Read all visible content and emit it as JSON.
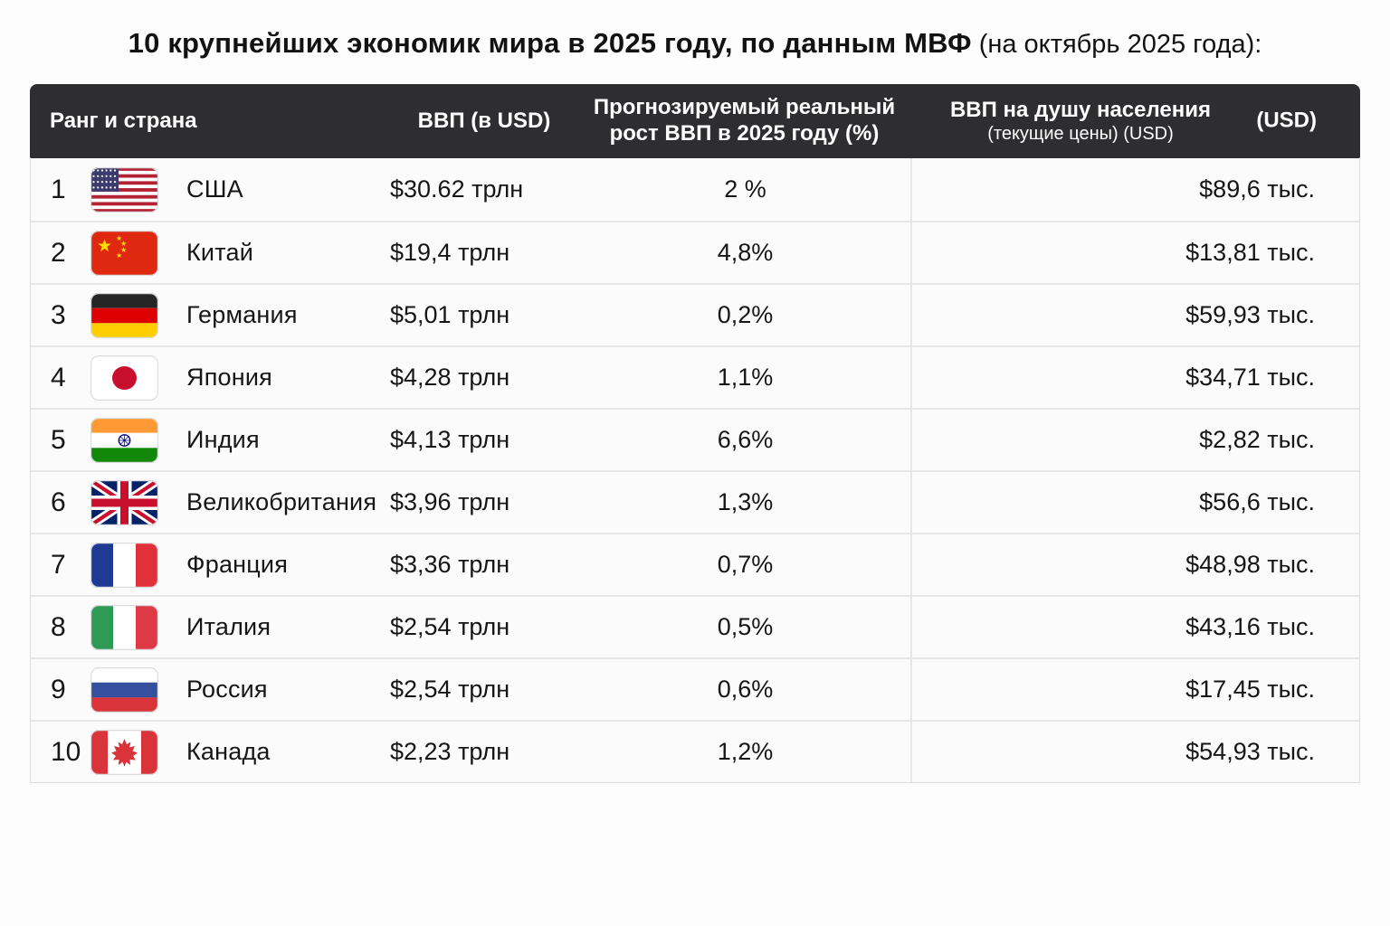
{
  "title": {
    "main": "10 крупнейших экономик мира в 2025 году, по данным МВФ",
    "suffix": " (на октябрь 2025 года):"
  },
  "table": {
    "headers": {
      "rank_country": "Ранг и страна",
      "gdp": "ВВП (в USD)",
      "growth_line1": "Прогнозируемый реальный",
      "growth_line2": "рост ВВП в 2025 году (%)",
      "per_capita_line1": "ВВП на душу населения",
      "per_capita_line1_right": "(USD)",
      "per_capita_line2": "(текущие цены) (USD)"
    },
    "rows": [
      {
        "rank": "1",
        "country": "США",
        "flag_icon": "usa-flag-icon",
        "gdp": "$30.62 трлн",
        "growth": "2 %",
        "per_capita": "$89,6 тыс."
      },
      {
        "rank": "2",
        "country": "Китай",
        "flag_icon": "china-flag-icon",
        "gdp": "$19,4 трлн",
        "growth": "4,8%",
        "per_capita": "$13,81 тыс."
      },
      {
        "rank": "3",
        "country": "Германия",
        "flag_icon": "germany-flag-icon",
        "gdp": "$5,01 трлн",
        "growth": "0,2%",
        "per_capita": "$59,93 тыс."
      },
      {
        "rank": "4",
        "country": "Япония",
        "flag_icon": "japan-flag-icon",
        "gdp": "$4,28 трлн",
        "growth": "1,1%",
        "per_capita": "$34,71 тыс."
      },
      {
        "rank": "5",
        "country": "Индия",
        "flag_icon": "india-flag-icon",
        "gdp": "$4,13 трлн",
        "growth": "6,6%",
        "per_capita": "$2,82 тыс."
      },
      {
        "rank": "6",
        "country": "Великобритания",
        "flag_icon": "uk-flag-icon",
        "gdp": "$3,96 трлн",
        "growth": "1,3%",
        "per_capita": "$56,6 тыс."
      },
      {
        "rank": "7",
        "country": "Франция",
        "flag_icon": "france-flag-icon",
        "gdp": "$3,36 трлн",
        "growth": "0,7%",
        "per_capita": "$48,98 тыс."
      },
      {
        "rank": "8",
        "country": "Италия",
        "flag_icon": "italy-flag-icon",
        "gdp": "$2,54 трлн",
        "growth": "0,5%",
        "per_capita": "$43,16 тыс."
      },
      {
        "rank": "9",
        "country": "Россия",
        "flag_icon": "russia-flag-icon",
        "gdp": "$2,54 трлн",
        "growth": "0,6%",
        "per_capita": "$17,45 тыс."
      },
      {
        "rank": "10",
        "country": "Канада",
        "flag_icon": "canada-flag-icon",
        "gdp": "$2,23 трлн",
        "growth": "1,2%",
        "per_capita": "$54,93 тыс."
      }
    ]
  },
  "chart_data": {
    "type": "table",
    "title": "10 крупнейших экономик мира в 2025 году, по данным МВФ (на октябрь 2025 года):",
    "columns": [
      "Ранг и страна",
      "ВВП (в USD)",
      "Прогнозируемый реальный рост ВВП в 2025 году (%)",
      "ВВП на душу населения (текущие цены) (USD)"
    ],
    "rows": [
      [
        "1",
        "США",
        "$30.62 трлн",
        "2 %",
        "$89,6 тыс."
      ],
      [
        "2",
        "Китай",
        "$19,4 трлн",
        "4,8%",
        "$13,81 тыс."
      ],
      [
        "3",
        "Германия",
        "$5,01 трлн",
        "0,2%",
        "$59,93 тыс."
      ],
      [
        "4",
        "Япония",
        "$4,28 трлн",
        "1,1%",
        "$34,71 тыс."
      ],
      [
        "5",
        "Индия",
        "$4,13 трлн",
        "6,6%",
        "$2,82 тыс."
      ],
      [
        "6",
        "Великобритания",
        "$3,96 трлн",
        "1,3%",
        "$56,6 тыс."
      ],
      [
        "7",
        "Франция",
        "$3,36 трлн",
        "0,7%",
        "$48,98 тыс."
      ],
      [
        "8",
        "Италия",
        "$2,54 трлн",
        "0,5%",
        "$43,16 тыс."
      ],
      [
        "9",
        "Россия",
        "$2,54 трлн",
        "0,6%",
        "$17,45 тыс."
      ],
      [
        "10",
        "Канада",
        "$2,23 трлн",
        "1,2%",
        "$54,93 тыс."
      ]
    ]
  },
  "colors": {
    "header_bg": "#2e2e30",
    "header_text": "#ffffff",
    "row_bg": "#fbfbfc",
    "row_border": "#e7e7ea",
    "text": "#161616"
  }
}
